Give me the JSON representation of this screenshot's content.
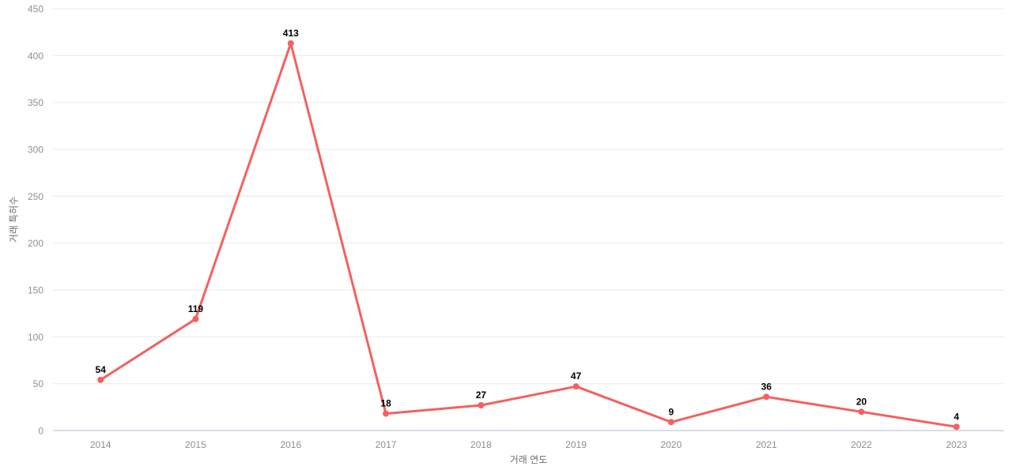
{
  "chart_data": {
    "type": "line",
    "title": "",
    "categories": [
      "2014",
      "2015",
      "2016",
      "2017",
      "2018",
      "2019",
      "2020",
      "2021",
      "2022",
      "2023"
    ],
    "series": [
      {
        "name": "거래 특허수",
        "values": [
          54,
          119,
          413,
          18,
          27,
          47,
          9,
          36,
          20,
          4
        ]
      }
    ],
    "xlabel": "거래 연도",
    "ylabel": "거래 특허수",
    "ylim": [
      0,
      450
    ],
    "y_ticks": [
      0,
      50,
      100,
      150,
      200,
      250,
      300,
      350,
      400,
      450
    ],
    "grid": true,
    "legend_position": "none",
    "point_labels_visible": true,
    "colors": {
      "line": "#f4615e",
      "marker": "#f4615e",
      "grid_line": "#e8e8e8",
      "axis_line": "#c9d4e3",
      "tick_label": "#8f8f8f",
      "axis_title": "#6e6e6e",
      "value_label": "#000000",
      "background": "#ffffff"
    }
  }
}
